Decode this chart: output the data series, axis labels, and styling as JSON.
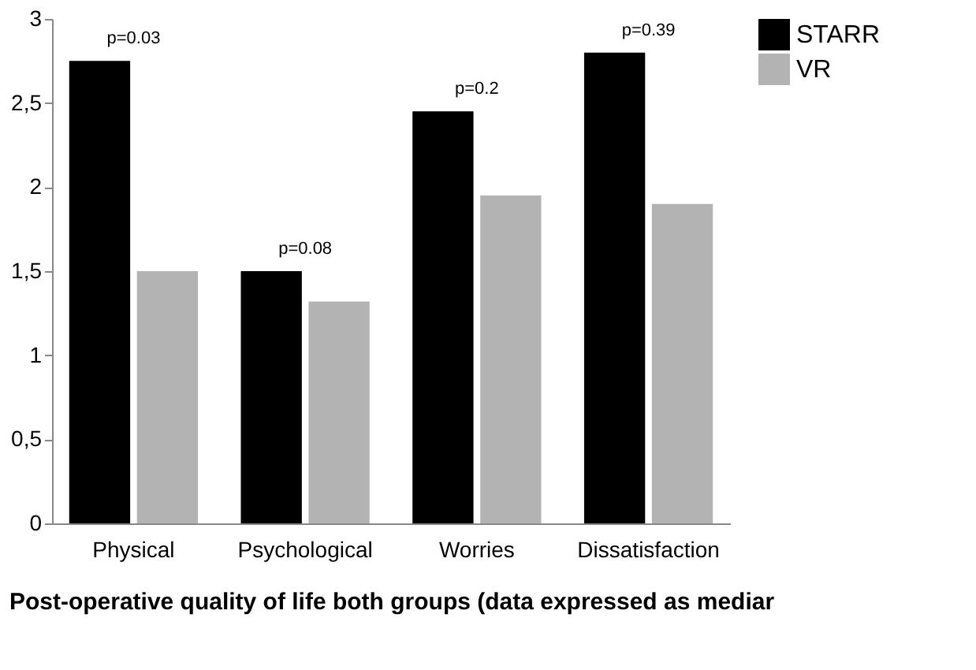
{
  "chart_data": {
    "type": "bar",
    "xlabel": "Post-operative quality of life both groups (data expressed as mediar",
    "categories": [
      "Physical",
      "Psychological",
      "Worries",
      "Dissatisfaction"
    ],
    "series": [
      {
        "name": "STARR",
        "color": "#000000",
        "values": [
          2.75,
          1.5,
          2.45,
          2.8
        ]
      },
      {
        "name": "VR",
        "color": "#b3b3b3",
        "values": [
          1.5,
          1.32,
          1.95,
          1.9
        ]
      }
    ],
    "ylim": [
      0,
      3
    ],
    "yticks": [
      0,
      {
        "value": 0.5,
        "label": "0,5"
      },
      1,
      {
        "value": 1.5,
        "label": "1,5"
      },
      2,
      {
        "value": 2.5,
        "label": "2,5"
      },
      3
    ],
    "annotations": [
      "p=0.03",
      "p=0.08",
      "p=0.2",
      "p=0.39"
    ],
    "legend": "right",
    "grid": false
  }
}
